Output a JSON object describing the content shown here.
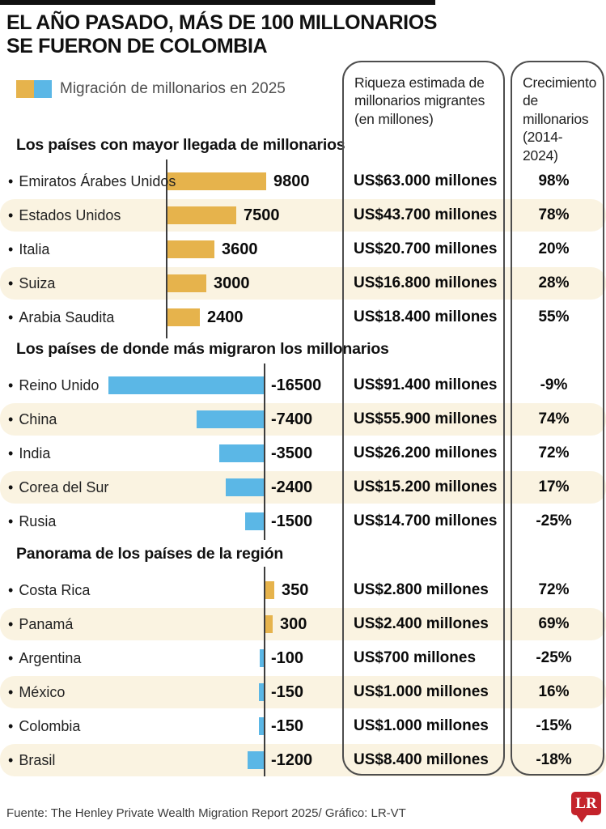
{
  "header": {
    "title_line1": "EL AÑO PASADO, MÁS DE 100 MILLONARIOS",
    "title_line2": "SE FUERON DE COLOMBIA"
  },
  "legend": {
    "label": "Migración de millonarios en 2025"
  },
  "columns": {
    "wealth_header": "Riqueza estimada de millonarios migrantes (en millones)",
    "growth_header": "Crecimiento de millonarios (2014-2024)"
  },
  "colors": {
    "inflow": "#e6b34c",
    "outflow": "#5bb7e6",
    "stripe": "#faf3e1",
    "axis": "#3d3d3d",
    "logo_red": "#c4232b",
    "topbar": "#111111"
  },
  "footer": {
    "source": "Fuente: The Henley Private Wealth Migration Report 2025/ Gráfico: LR-VT",
    "logo": "LR"
  },
  "chart_data": {
    "type": "bar",
    "orientation": "horizontal",
    "title": "EL AÑO PASADO, MÁS DE 100 MILLONARIOS SE FUERON DE COLOMBIA",
    "legend": "Migración de millonarios en 2025",
    "value_unit": "net millionaire migration in 2025 (persons)",
    "extra_columns": [
      "Riqueza estimada de millonarios migrantes (en millones)",
      "Crecimiento de millonarios (2014-2024)"
    ],
    "groups": [
      {
        "title": "Los países con mayor llegada de millonarios",
        "rows": [
          {
            "country": "Emiratos Árabes Unidos",
            "value": 9800,
            "wealth": "US$63.000 millones",
            "growth": "98%"
          },
          {
            "country": "Estados Unidos",
            "value": 7500,
            "wealth": "US$43.700 millones",
            "growth": "78%"
          },
          {
            "country": "Italia",
            "value": 3600,
            "wealth": "US$20.700 millones",
            "growth": "20%"
          },
          {
            "country": "Suiza",
            "value": 3000,
            "wealth": "US$16.800 millones",
            "growth": "28%"
          },
          {
            "country": "Arabia Saudita",
            "value": 2400,
            "wealth": "US$18.400 millones",
            "growth": "55%"
          }
        ]
      },
      {
        "title": "Los países de donde más migraron los millonarios",
        "rows": [
          {
            "country": "Reino Unido",
            "value": -16500,
            "wealth": "US$91.400 millones",
            "growth": "-9%"
          },
          {
            "country": "China",
            "value": -7400,
            "wealth": "US$55.900 millones",
            "growth": "74%"
          },
          {
            "country": "India",
            "value": -3500,
            "wealth": "US$26.200 millones",
            "growth": "72%"
          },
          {
            "country": "Corea del Sur",
            "value": -2400,
            "wealth": "US$15.200 millones",
            "growth": "17%"
          },
          {
            "country": "Rusia",
            "value": -1500,
            "wealth": "US$14.700 millones",
            "growth": "-25%"
          }
        ]
      },
      {
        "title": "Panorama de los países de la región",
        "rows": [
          {
            "country": "Costa Rica",
            "value": 350,
            "wealth": "US$2.800 millones",
            "growth": "72%"
          },
          {
            "country": "Panamá",
            "value": 300,
            "wealth": "US$2.400 millones",
            "growth": "69%"
          },
          {
            "country": "Argentina",
            "value": -100,
            "wealth": "US$700 millones",
            "growth": "-25%"
          },
          {
            "country": "México",
            "value": -150,
            "wealth": "US$1.000 millones",
            "growth": "16%"
          },
          {
            "country": "Colombia",
            "value": -150,
            "wealth": "US$1.000 millones",
            "growth": "-15%"
          },
          {
            "country": "Brasil",
            "value": -1200,
            "wealth": "US$8.400 millones",
            "growth": "-18%"
          }
        ]
      }
    ]
  }
}
